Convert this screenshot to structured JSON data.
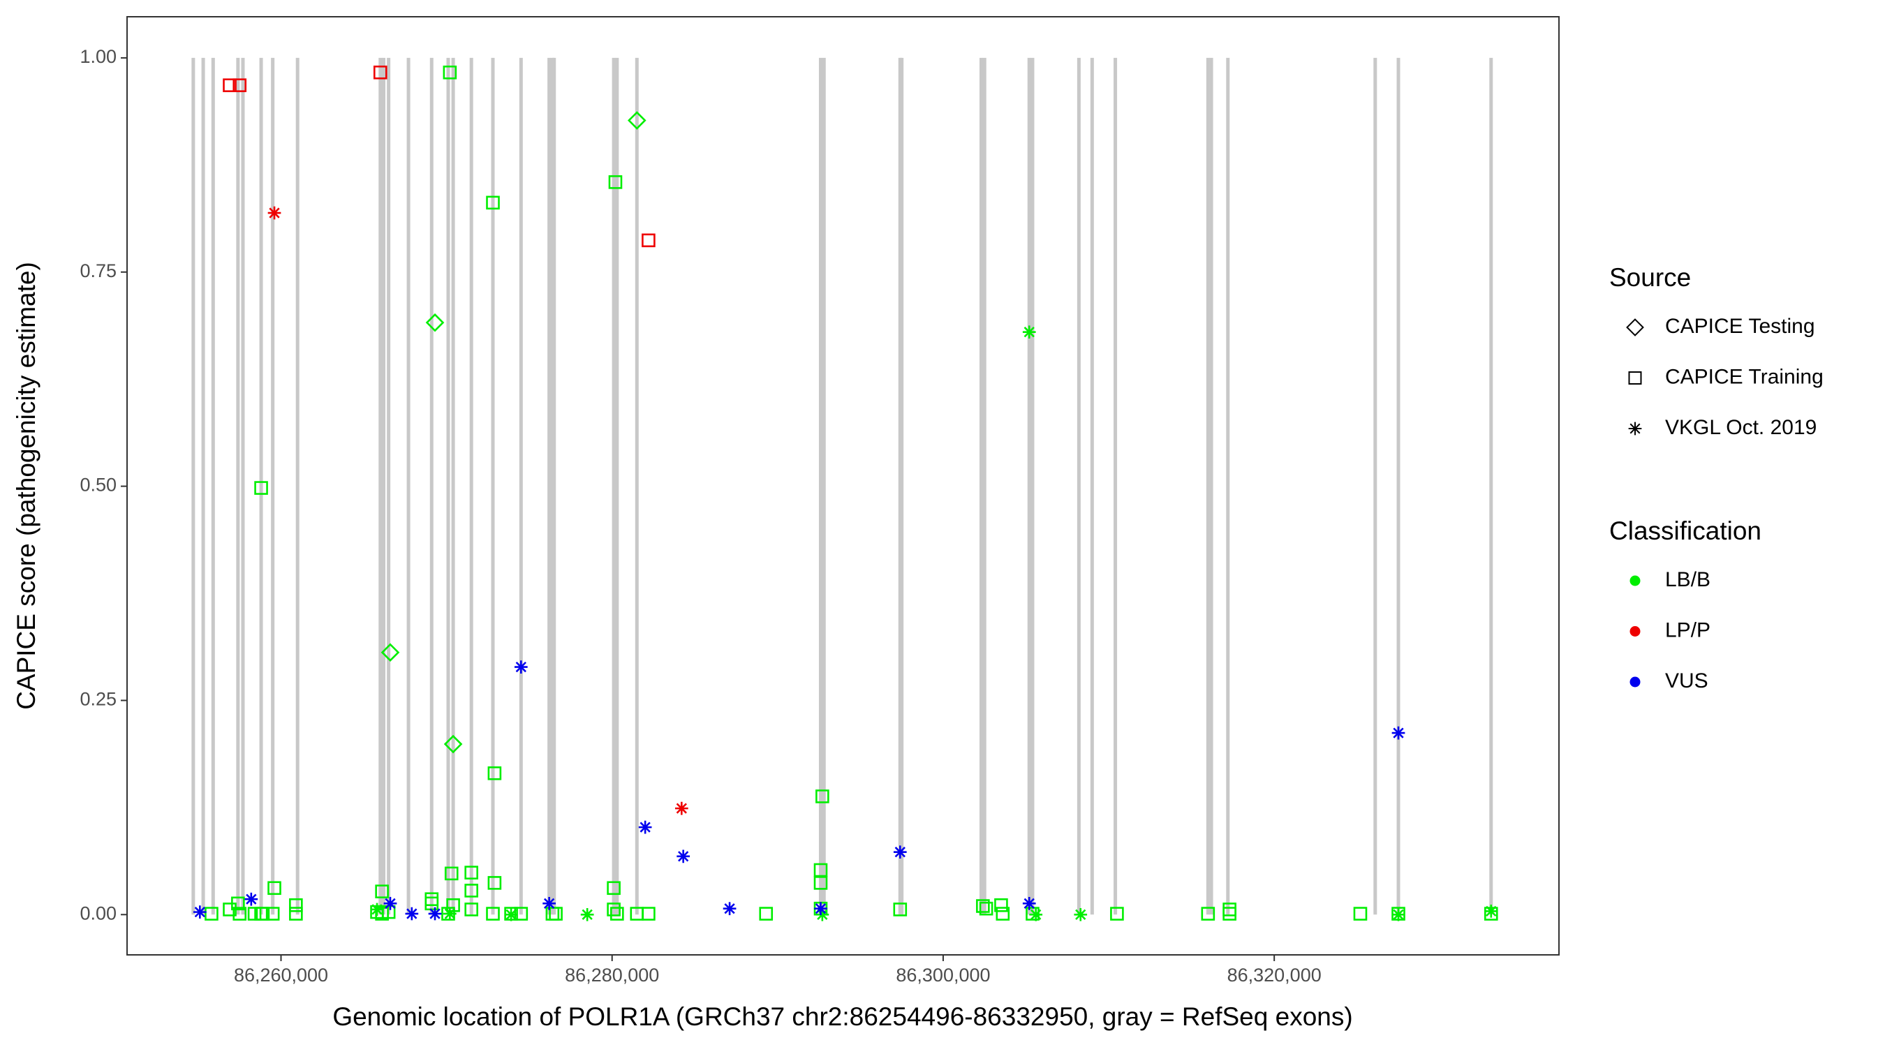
{
  "chart_data": {
    "type": "scatter",
    "x_label": "Genomic location of POLR1A (GRCh37 chr2:86254496-86332950, gray = RefSeq exons)",
    "y_label": "CAPICE score (pathogenicity estimate)",
    "xlim": [
      86250700,
      86337200
    ],
    "ylim": [
      -0.047,
      1.048
    ],
    "xticks": [
      {
        "value": 86260000,
        "label": "86,260,000"
      },
      {
        "value": 86280000,
        "label": "86,280,000"
      },
      {
        "value": 86300000,
        "label": "86,300,000"
      },
      {
        "value": 86320000,
        "label": "86,320,000"
      }
    ],
    "yticks": [
      {
        "value": 0,
        "label": "0.00"
      },
      {
        "value": 0.25,
        "label": "0.25"
      },
      {
        "value": 0.5,
        "label": "0.50"
      },
      {
        "value": 0.75,
        "label": "0.75"
      },
      {
        "value": 1,
        "label": "1.00"
      }
    ],
    "grid": false,
    "exon_color": "#c8c8c8",
    "exon_span": [
      0,
      1
    ],
    "exons": [
      86254700,
      86255300,
      86255900,
      86257400,
      86257700,
      86258800,
      86259500,
      86261000,
      86266000,
      86266200,
      86266500,
      86267700,
      86269100,
      86270100,
      86270400,
      86271500,
      86272800,
      86274500,
      86276200,
      86276400,
      86276500,
      86280100,
      86280300,
      86281500,
      86292600,
      86292800,
      86297400,
      86297500,
      86302300,
      86302500,
      86305200,
      86305400,
      86308200,
      86309000,
      86310400,
      86316000,
      86316200,
      86317200,
      86326100,
      86327500,
      86333100
    ],
    "legends": [
      {
        "title": "Source",
        "items": [
          {
            "label": "CAPICE Testing",
            "shape": "diamond"
          },
          {
            "label": "CAPICE Training",
            "shape": "square"
          },
          {
            "label": "VKGL Oct. 2019",
            "shape": "asterisk"
          }
        ]
      },
      {
        "title": "Classification",
        "items": [
          {
            "label": "LB/B",
            "color": "#00ee00"
          },
          {
            "label": "LP/P",
            "color": "#ee0000"
          },
          {
            "label": "VUS",
            "color": "#0000ee"
          }
        ]
      }
    ],
    "series": [
      {
        "source": "CAPICE Training",
        "classification": "LB/B",
        "x": [
          86270200,
          86272800,
          86280200,
          86258800,
          86272900,
          86292700,
          86292600,
          86292600,
          86270300,
          86271500,
          86271500,
          86272900,
          86280100,
          86259600,
          86266100,
          86255800,
          86256900,
          86257400,
          86257500,
          86258400,
          86258800,
          86258900,
          86259500,
          86260900,
          86260900,
          86265800,
          86266100,
          86266500,
          86269100,
          86269100,
          86270100,
          86270400,
          86271500,
          86272800,
          86273900,
          86274500,
          86276400,
          86276600,
          86280100,
          86280300,
          86281500,
          86282200,
          86289300,
          86292600,
          86297400,
          86302400,
          86302600,
          86303500,
          86303600,
          86305400,
          86310500,
          86316000,
          86317300,
          86317300,
          86325200,
          86327500,
          86333100
        ],
        "values": [
          0.983,
          0.831,
          0.855,
          0.498,
          0.165,
          0.138,
          0.052,
          0.037,
          0.048,
          0.049,
          0.028,
          0.037,
          0.031,
          0.031,
          0.027,
          0.001,
          0.006,
          0.013,
          0.001,
          0.001,
          0.001,
          0.001,
          0.001,
          0.011,
          0.001,
          0.003,
          0.001,
          0.003,
          0.018,
          0.013,
          0.001,
          0.011,
          0.006,
          0.001,
          0.001,
          0.001,
          0.001,
          0.001,
          0.006,
          0.001,
          0.001,
          0.001,
          0.001,
          0.007,
          0.006,
          0.01,
          0.007,
          0.011,
          0.001,
          0.001,
          0.001,
          0.001,
          0.006,
          0.001,
          0.001,
          0.001,
          0.001
        ]
      },
      {
        "source": "CAPICE Training",
        "classification": "LP/P",
        "x": [
          86256900,
          86257500,
          86266000,
          86282200
        ],
        "values": [
          0.968,
          0.968,
          0.983,
          0.787
        ]
      },
      {
        "source": "CAPICE Testing",
        "classification": "LB/B",
        "x": [
          86281500,
          86269300,
          86266600,
          86270400
        ],
        "values": [
          0.927,
          0.691,
          0.306,
          0.199
        ]
      },
      {
        "source": "VKGL Oct. 2019",
        "classification": "LB/B",
        "x": [
          86305200,
          86265800,
          86270200,
          86273900,
          86278500,
          86292700,
          86305600,
          86308300,
          86327500,
          86333100
        ],
        "values": [
          0.68,
          0.006,
          0.001,
          0,
          0,
          0,
          0,
          0,
          0,
          0.004
        ]
      },
      {
        "source": "VKGL Oct. 2019",
        "classification": "LP/P",
        "x": [
          86259600,
          86284200
        ],
        "values": [
          0.819,
          0.124
        ]
      },
      {
        "source": "VKGL Oct. 2019",
        "classification": "VUS",
        "x": [
          86274500,
          86282000,
          86284300,
          86297400,
          86327500,
          86255100,
          86258200,
          86266600,
          86267900,
          86269300,
          86276200,
          86287100,
          86292600,
          86305200
        ],
        "values": [
          0.289,
          0.102,
          0.068,
          0.073,
          0.212,
          0.003,
          0.018,
          0.013,
          0.001,
          0.001,
          0.013,
          0.007,
          0.007,
          0.013
        ]
      }
    ]
  }
}
